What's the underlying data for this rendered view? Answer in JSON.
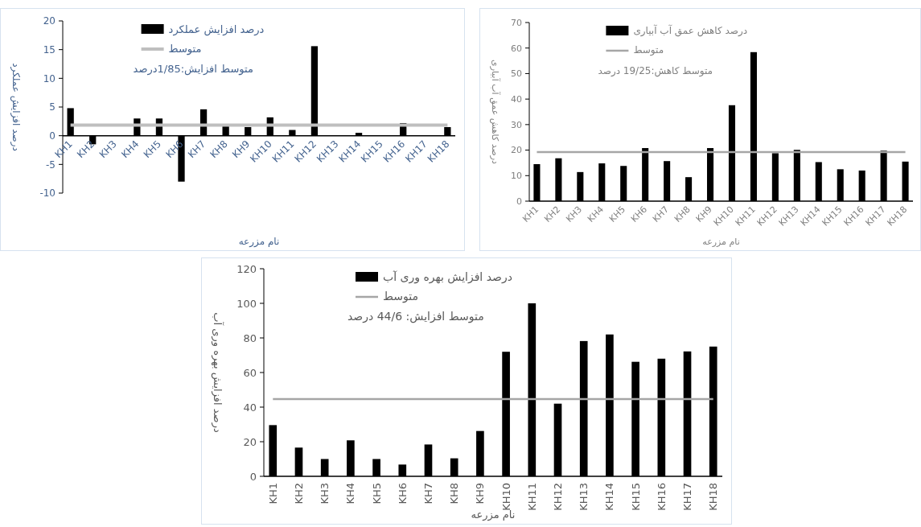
{
  "chart_data": [
    {
      "type": "bar",
      "categories": [
        "KH1",
        "KH2",
        "KH3",
        "KH4",
        "KH5",
        "KH6",
        "KH7",
        "KH8",
        "KH9",
        "KH10",
        "KH11",
        "KH12",
        "KH13",
        "KH14",
        "KH15",
        "KH16",
        "KH17",
        "KH18"
      ],
      "xlabel": "نام مزرعه",
      "ylabel": "درصد افزایش عملکرد",
      "ylim": [
        -10,
        20
      ],
      "yticks": [
        -10,
        -5,
        0,
        5,
        10,
        15,
        20
      ],
      "legend": "top left",
      "annotations": [
        "متوسط افزایش:1/85درصد"
      ],
      "series": [
        {
          "name": "درصد افزایش عملکرد",
          "color": "#000000",
          "values": [
            4.8,
            -1.5,
            0,
            3.0,
            3.0,
            -8.0,
            4.6,
            1.7,
            1.5,
            3.2,
            1.0,
            15.6,
            0,
            0.5,
            0,
            2.2,
            0,
            1.5
          ]
        },
        {
          "name": "متوسط",
          "type": "line",
          "color": "#bfbfbf",
          "values": [
            1.85,
            1.85,
            1.85,
            1.85,
            1.85,
            1.85,
            1.85,
            1.85,
            1.85,
            1.85,
            1.85,
            1.85,
            1.85,
            1.85,
            1.85,
            1.85,
            1.85,
            1.85
          ]
        }
      ]
    },
    {
      "type": "bar",
      "categories": [
        "KH1",
        "KH2",
        "KH3",
        "KH4",
        "KH5",
        "KH6",
        "KH7",
        "KH8",
        "KH9",
        "KH10",
        "KH11",
        "KH12",
        "KH13",
        "KH14",
        "KH15",
        "KH16",
        "KH17",
        "KH18"
      ],
      "xlabel": "نام مزرعه",
      "ylabel": "درصد کاهش عمق آب آبیاری",
      "ylim": [
        0,
        70
      ],
      "yticks": [
        0,
        10,
        20,
        30,
        40,
        50,
        60,
        70
      ],
      "legend": "top left",
      "annotations": [
        "متوسط کاهش:19/25 درصد"
      ],
      "series": [
        {
          "name": "درصد کاهش عمق آب آبیاری",
          "color": "#000000",
          "values": [
            14.5,
            16.8,
            11.4,
            14.8,
            13.8,
            20.8,
            15.7,
            9.4,
            20.8,
            37.6,
            58.4,
            18.8,
            20.1,
            15.3,
            12.5,
            12.0,
            19.8,
            15.5
          ]
        },
        {
          "name": "متوسط",
          "type": "line",
          "color": "#a6a6a6",
          "values": [
            19.25,
            19.25,
            19.25,
            19.25,
            19.25,
            19.25,
            19.25,
            19.25,
            19.25,
            19.25,
            19.25,
            19.25,
            19.25,
            19.25,
            19.25,
            19.25,
            19.25,
            19.25
          ]
        }
      ]
    },
    {
      "type": "bar",
      "categories": [
        "KH1",
        "KH2",
        "KH3",
        "KH4",
        "KH5",
        "KH6",
        "KH7",
        "KH8",
        "KH9",
        "KH10",
        "KH11",
        "KH12",
        "KH13",
        "KH14",
        "KH15",
        "KH16",
        "KH17",
        "KH18"
      ],
      "xlabel": "نام مزرعه",
      "ylabel": "درصد افزایش بهره وری آب",
      "ylim": [
        0,
        120
      ],
      "yticks": [
        0,
        20,
        40,
        60,
        80,
        100,
        120
      ],
      "legend": "top left",
      "annotations": [
        "متوسط افزایش: 44/6 درصد"
      ],
      "series": [
        {
          "name": "درصد افزایش بهره وری آب",
          "color": "#000000",
          "values": [
            29.6,
            16.6,
            10,
            20.8,
            10,
            6.8,
            18.4,
            10.4,
            26.2,
            72,
            100,
            42,
            78.2,
            82,
            66.2,
            68,
            72.2,
            75
          ]
        },
        {
          "name": "متوسط",
          "type": "line",
          "color": "#a6a6a6",
          "values": [
            44.6,
            44.6,
            44.6,
            44.6,
            44.6,
            44.6,
            44.6,
            44.6,
            44.6,
            44.6,
            44.6,
            44.6,
            44.6,
            44.6,
            44.6,
            44.6,
            44.6,
            44.6
          ]
        }
      ]
    }
  ]
}
